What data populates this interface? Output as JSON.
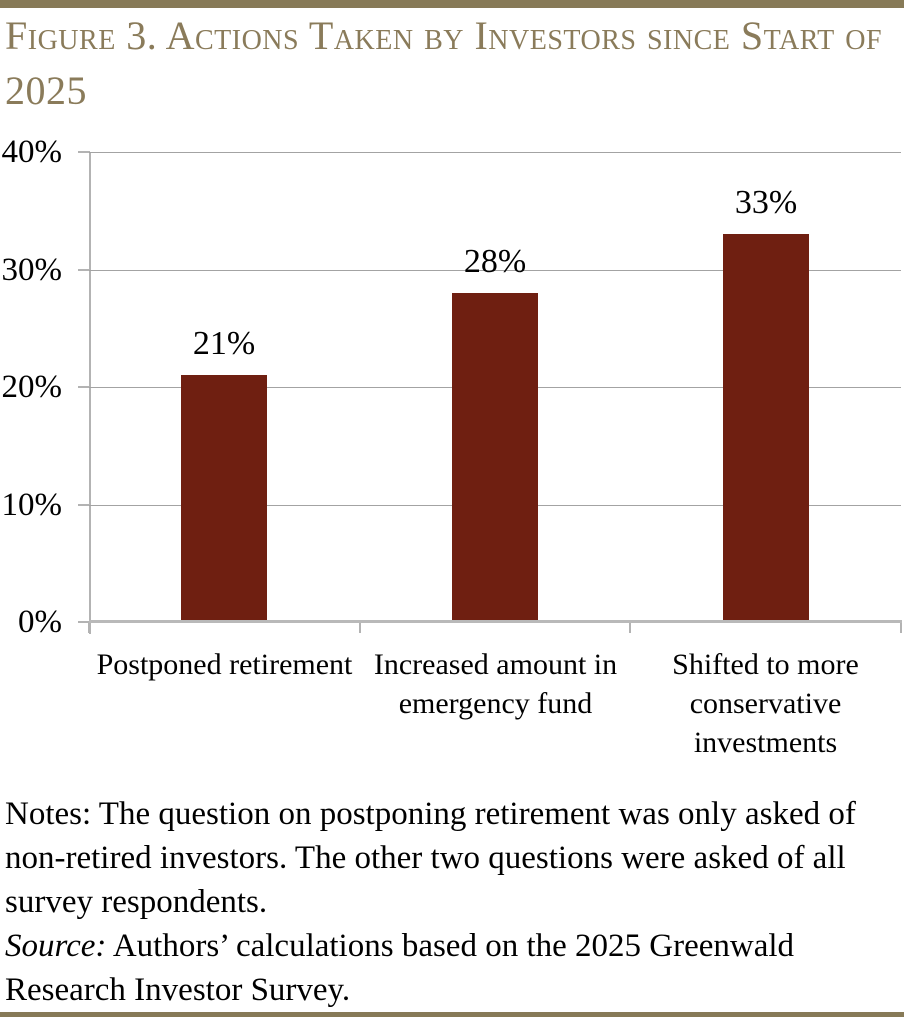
{
  "chart_data": {
    "type": "bar",
    "title": "Figure 3. Actions Taken by Investors since Start of 2025",
    "categories": [
      "Postponed retirement",
      "Increased amount in emergency fund",
      "Shifted to more conservative investments"
    ],
    "values": [
      21,
      28,
      33
    ],
    "data_labels": [
      "21%",
      "28%",
      "33%"
    ],
    "xlabel": "",
    "ylabel": "",
    "ylim": [
      0,
      40
    ],
    "yticks": [
      0,
      10,
      20,
      30,
      40
    ],
    "ytick_labels": [
      "0%",
      "10%",
      "20%",
      "30%",
      "40%"
    ],
    "grid": true,
    "legend": false,
    "bar_color": "#6f1f11",
    "gridline_color": "#a3a3a3",
    "accent_color": "#877a57"
  },
  "notes": {
    "notes_text": "Notes: The question on postponing retirement was only asked of non-retired investors. The other two questions were asked of all survey respondents.",
    "source_label": "Source:",
    "source_text": "Authors’ calculations based on the 2025 Greenwald Research Investor Survey."
  }
}
